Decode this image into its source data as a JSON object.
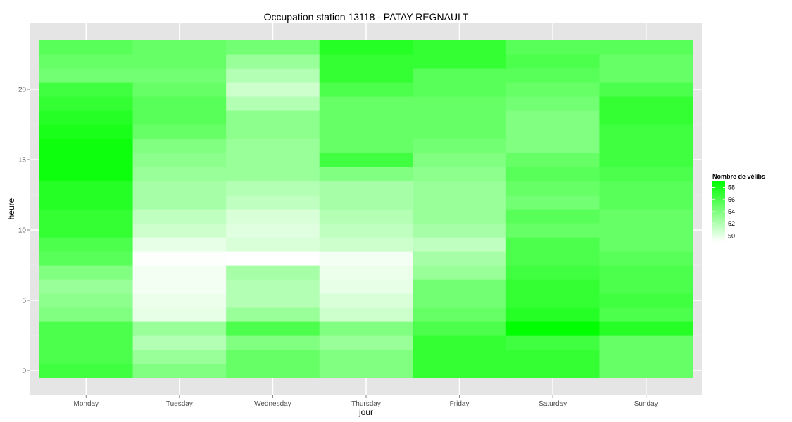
{
  "chart_data": {
    "type": "heatmap",
    "title": "Occupation station 13118 - PATAY REGNAULT",
    "xlabel": "jour",
    "ylabel": "heure",
    "categories": [
      "Monday",
      "Tuesday",
      "Wednesday",
      "Thursday",
      "Friday",
      "Saturday",
      "Sunday"
    ],
    "y": [
      0,
      1,
      2,
      3,
      4,
      5,
      6,
      7,
      8,
      9,
      10,
      11,
      12,
      13,
      14,
      15,
      16,
      17,
      18,
      19,
      20,
      21,
      22,
      23
    ],
    "yticks": [
      0,
      5,
      10,
      15,
      20
    ],
    "ylim": [
      -0.5,
      23.5
    ],
    "grid": true,
    "legend": {
      "title": "Nombre de vélibs",
      "placement": "right",
      "breaks": [
        58,
        56,
        54,
        52,
        50
      ],
      "range": [
        49,
        59
      ],
      "color_low": "#ffffff",
      "color_high": "#00ff00"
    },
    "values": [
      [
        56.5,
        54.0,
        55.0,
        54.0,
        57.0,
        57.0,
        55.0
      ],
      [
        56.0,
        53.0,
        55.0,
        54.0,
        57.0,
        57.0,
        55.0
      ],
      [
        56.0,
        52.0,
        54.0,
        53.0,
        57.0,
        56.5,
        55.0
      ],
      [
        56.0,
        53.0,
        56.0,
        54.0,
        56.0,
        59.0,
        57.5
      ],
      [
        54.0,
        50.0,
        53.0,
        51.0,
        55.0,
        57.5,
        56.0
      ],
      [
        53.5,
        49.8,
        52.0,
        50.5,
        54.5,
        57.0,
        56.5
      ],
      [
        53.0,
        49.5,
        52.0,
        50.0,
        54.5,
        57.0,
        56.0
      ],
      [
        54.0,
        49.5,
        52.5,
        49.8,
        53.0,
        56.5,
        56.0
      ],
      [
        55.5,
        49.1,
        49.0,
        49.5,
        52.5,
        56.0,
        55.5
      ],
      [
        56.0,
        50.0,
        50.5,
        51.0,
        51.5,
        56.0,
        55.0
      ],
      [
        57.0,
        51.0,
        50.2,
        51.5,
        52.5,
        55.0,
        55.0
      ],
      [
        57.0,
        51.5,
        50.5,
        52.0,
        53.0,
        55.5,
        55.0
      ],
      [
        57.5,
        52.5,
        51.5,
        52.5,
        53.0,
        54.5,
        55.5
      ],
      [
        57.5,
        52.5,
        52.0,
        52.5,
        53.0,
        55.0,
        55.5
      ],
      [
        58.5,
        53.0,
        53.0,
        54.0,
        53.5,
        55.5,
        56.0
      ],
      [
        58.5,
        53.5,
        53.0,
        56.5,
        54.0,
        55.0,
        56.5
      ],
      [
        58.5,
        54.0,
        53.0,
        55.0,
        54.5,
        54.0,
        56.5
      ],
      [
        58.0,
        55.0,
        53.5,
        55.0,
        55.0,
        54.0,
        56.5
      ],
      [
        57.5,
        55.5,
        53.5,
        55.0,
        55.0,
        54.0,
        57.0
      ],
      [
        57.0,
        55.5,
        52.0,
        55.0,
        55.0,
        54.5,
        57.0
      ],
      [
        56.5,
        55.0,
        51.0,
        56.0,
        55.5,
        55.0,
        56.0
      ],
      [
        54.5,
        54.5,
        52.0,
        57.0,
        55.5,
        55.5,
        55.0
      ],
      [
        55.0,
        55.0,
        53.0,
        57.0,
        57.0,
        56.0,
        55.0
      ],
      [
        55.5,
        55.0,
        54.5,
        57.5,
        57.0,
        55.5,
        55.5
      ]
    ]
  }
}
